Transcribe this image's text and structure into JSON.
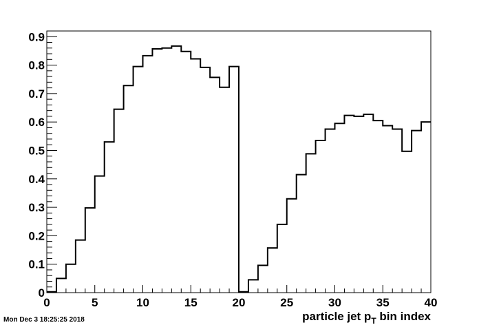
{
  "timestamp": "Mon Dec  3 18:25:25 2018",
  "chart_data": {
    "type": "step",
    "title": "",
    "xlabel": {
      "main": "particle jet p",
      "sub": "T",
      "rest": " bin index"
    },
    "ylabel": "",
    "xlim": [
      0,
      40
    ],
    "ylim": [
      0,
      0.92
    ],
    "xticks": [
      0,
      5,
      10,
      15,
      20,
      25,
      30,
      35,
      40
    ],
    "xtick_labels": [
      "0",
      "5",
      "10",
      "15",
      "20",
      "25",
      "30",
      "35",
      "40"
    ],
    "yticks": [
      0,
      0.1,
      0.2,
      0.3,
      0.4,
      0.5,
      0.6,
      0.7,
      0.8,
      0.9
    ],
    "ytick_labels": [
      "0",
      "0.1",
      "0.2",
      "0.3",
      "0.4",
      "0.5",
      "0.6",
      "0.7",
      "0.8",
      "0.9"
    ],
    "grid": false,
    "bin_edges": [
      0,
      1,
      2,
      3,
      4,
      5,
      6,
      7,
      8,
      9,
      10,
      11,
      12,
      13,
      14,
      15,
      16,
      17,
      18,
      19,
      20,
      21,
      22,
      23,
      24,
      25,
      26,
      27,
      28,
      29,
      30,
      31,
      32,
      33,
      34,
      35,
      36,
      37,
      38,
      39,
      40
    ],
    "values": [
      0.003,
      0.05,
      0.1,
      0.185,
      0.298,
      0.41,
      0.53,
      0.645,
      0.728,
      0.795,
      0.833,
      0.857,
      0.86,
      0.867,
      0.848,
      0.822,
      0.792,
      0.757,
      0.722,
      0.795,
      0.003,
      0.045,
      0.096,
      0.157,
      0.24,
      0.33,
      0.415,
      0.488,
      0.535,
      0.575,
      0.595,
      0.623,
      0.62,
      0.627,
      0.605,
      0.587,
      0.575,
      0.497,
      0.57,
      0.6
    ]
  }
}
